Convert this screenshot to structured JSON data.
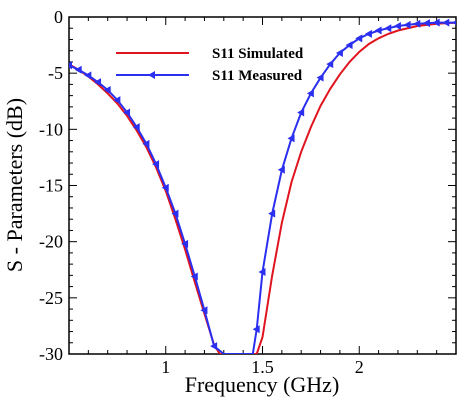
{
  "chart_data": {
    "type": "line",
    "xlabel": "Frequency (GHz)",
    "ylabel": "S - Parameters (dB)",
    "xlim": [
      0.5,
      2.5
    ],
    "ylim": [
      -30,
      0
    ],
    "xticks": [
      1,
      1.5,
      2
    ],
    "yticks": [
      0,
      -5,
      -10,
      -15,
      -20,
      -25,
      -30
    ],
    "grid": false,
    "legend_position": "top-left",
    "series": [
      {
        "name": "S11 Simulated",
        "color": "#e0141e",
        "marker": "none",
        "x": [
          0.5,
          0.55,
          0.6,
          0.65,
          0.7,
          0.75,
          0.8,
          0.85,
          0.9,
          0.95,
          1.0,
          1.05,
          1.1,
          1.15,
          1.2,
          1.25,
          1.28,
          1.3,
          1.47,
          1.5,
          1.55,
          1.6,
          1.65,
          1.7,
          1.75,
          1.8,
          1.85,
          1.9,
          1.95,
          2.0,
          2.05,
          2.1,
          2.15,
          2.2,
          2.3,
          2.4,
          2.5
        ],
        "y": [
          -4.2,
          -4.7,
          -5.3,
          -6.0,
          -6.8,
          -7.7,
          -8.8,
          -10.1,
          -11.6,
          -13.4,
          -15.5,
          -18.0,
          -20.7,
          -23.6,
          -26.4,
          -29.2,
          -30.0,
          -30.0,
          -30.0,
          -28.5,
          -23.0,
          -18.3,
          -14.7,
          -12.0,
          -9.8,
          -7.9,
          -6.4,
          -5.1,
          -4.0,
          -3.1,
          -2.4,
          -1.9,
          -1.5,
          -1.2,
          -0.8,
          -0.6,
          -0.5
        ]
      },
      {
        "name": "S11 Measured",
        "color": "#2a2ff0",
        "marker": "triangle-left",
        "x": [
          0.5,
          0.55,
          0.6,
          0.65,
          0.7,
          0.75,
          0.8,
          0.85,
          0.9,
          0.95,
          1.0,
          1.05,
          1.1,
          1.15,
          1.2,
          1.25,
          1.3,
          1.34,
          1.45,
          1.47,
          1.5,
          1.55,
          1.6,
          1.65,
          1.7,
          1.75,
          1.8,
          1.85,
          1.9,
          1.95,
          2.0,
          2.05,
          2.1,
          2.15,
          2.2,
          2.25,
          2.3,
          2.35,
          2.4,
          2.45,
          2.5
        ],
        "y": [
          -4.3,
          -4.7,
          -5.2,
          -5.8,
          -6.5,
          -7.4,
          -8.5,
          -9.8,
          -11.3,
          -13.1,
          -15.2,
          -17.5,
          -20.2,
          -23.1,
          -26.1,
          -29.3,
          -30.0,
          -30.0,
          -30.0,
          -27.8,
          -22.7,
          -17.5,
          -13.6,
          -10.8,
          -8.5,
          -6.8,
          -5.4,
          -4.2,
          -3.2,
          -2.5,
          -1.9,
          -1.5,
          -1.2,
          -1.0,
          -0.8,
          -0.7,
          -0.6,
          -0.55,
          -0.5,
          -0.5,
          -0.5
        ]
      }
    ]
  }
}
